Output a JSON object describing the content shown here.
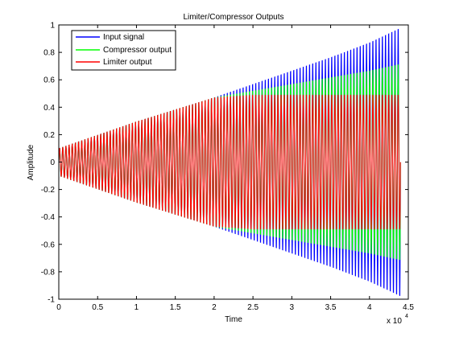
{
  "chart_data": {
    "type": "line",
    "title": "Limiter/Compressor Outputs",
    "xlabel": "Time",
    "ylabel": "Amplitude",
    "x_exponent_label": "x 10",
    "x_exponent": "4",
    "xlim": [
      0,
      4.5
    ],
    "ylim": [
      -1,
      1
    ],
    "x_scale_factor": 10000,
    "xticks": [
      "0",
      "0.5",
      "1",
      "1.5",
      "2",
      "2.5",
      "3",
      "3.5",
      "4",
      "4.5"
    ],
    "yticks": [
      "1",
      "0.8",
      "0.6",
      "0.4",
      "0.2",
      "0",
      "-0.2",
      "-0.4",
      "-0.6",
      "-0.8",
      "-1"
    ],
    "legend_position": "top-left",
    "grid": false,
    "series": [
      {
        "name": "Input signal",
        "color": "#0000ff",
        "description": "linearly growing sinusoid",
        "x": [
          0,
          0.5,
          1,
          1.5,
          2,
          2.5,
          3,
          3.5,
          4,
          4.4
        ],
        "envelope": [
          0.1,
          0.2,
          0.3,
          0.39,
          0.48,
          0.58,
          0.68,
          0.78,
          0.89,
          1.0
        ]
      },
      {
        "name": "Compressor output",
        "color": "#00ff00",
        "description": "compressed envelope above threshold",
        "x": [
          0,
          0.5,
          1,
          1.5,
          2,
          2.5,
          3,
          3.5,
          4,
          4.4
        ],
        "envelope": [
          0.1,
          0.2,
          0.3,
          0.39,
          0.48,
          0.53,
          0.58,
          0.63,
          0.68,
          0.73
        ]
      },
      {
        "name": "Limiter output",
        "color": "#ff0000",
        "description": "envelope clipped at 0.5",
        "x": [
          0,
          0.5,
          1,
          1.5,
          2,
          2.5,
          3,
          3.5,
          4,
          4.4
        ],
        "envelope": [
          0.1,
          0.2,
          0.3,
          0.39,
          0.48,
          0.5,
          0.5,
          0.5,
          0.5,
          0.5
        ]
      }
    ]
  }
}
